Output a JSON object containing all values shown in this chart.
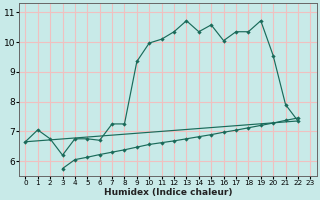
{
  "xlabel": "Humidex (Indice chaleur)",
  "background_color": "#c8eae8",
  "grid_color": "#f0c0c0",
  "line_color": "#1a6b5a",
  "xlim": [
    -0.5,
    23.5
  ],
  "ylim": [
    5.5,
    11.3
  ],
  "xticks": [
    0,
    1,
    2,
    3,
    4,
    5,
    6,
    7,
    8,
    9,
    10,
    11,
    12,
    13,
    14,
    15,
    16,
    17,
    18,
    19,
    20,
    21,
    22,
    23
  ],
  "yticks": [
    6,
    7,
    8,
    9,
    10,
    11
  ],
  "top_line_x": [
    0,
    1,
    2,
    3,
    4,
    5,
    6,
    7,
    8,
    9,
    10,
    11,
    12,
    13,
    14,
    15,
    16,
    17,
    18,
    19,
    20,
    21,
    22
  ],
  "top_line_y": [
    6.65,
    7.05,
    6.75,
    6.2,
    6.75,
    6.75,
    6.7,
    7.25,
    7.25,
    9.35,
    9.97,
    10.1,
    10.35,
    10.72,
    10.35,
    10.58,
    10.05,
    10.35,
    10.35,
    10.72,
    9.55,
    7.9,
    7.35
  ],
  "diag_line_x": [
    0,
    22
  ],
  "diag_line_y": [
    6.65,
    7.35
  ],
  "bot_line_x": [
    3,
    4,
    5,
    6,
    7,
    8,
    9,
    10,
    11,
    12,
    13,
    14,
    15,
    16,
    17,
    18,
    19,
    20,
    21,
    22
  ],
  "bot_line_y": [
    5.75,
    6.05,
    6.13,
    6.22,
    6.3,
    6.38,
    6.47,
    6.56,
    6.62,
    6.68,
    6.75,
    6.82,
    6.89,
    6.97,
    7.04,
    7.12,
    7.2,
    7.28,
    7.37,
    7.45
  ]
}
